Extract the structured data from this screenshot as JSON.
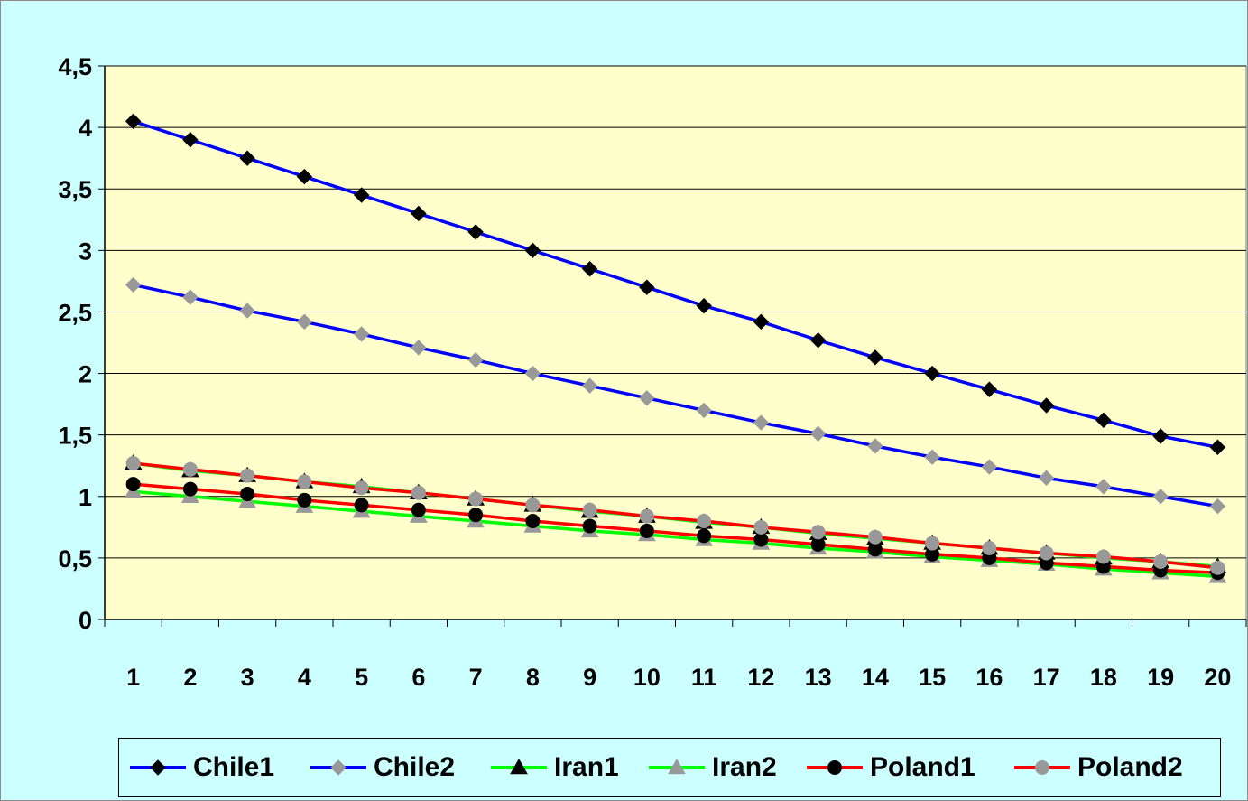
{
  "chart_data": {
    "type": "line",
    "x": [
      1,
      2,
      3,
      4,
      5,
      6,
      7,
      8,
      9,
      10,
      11,
      12,
      13,
      14,
      15,
      16,
      17,
      18,
      19,
      20
    ],
    "x_tick_labels": [
      "1",
      "2",
      "3",
      "4",
      "5",
      "6",
      "7",
      "8",
      "9",
      "10",
      "11",
      "12",
      "13",
      "14",
      "15",
      "16",
      "17",
      "18",
      "19",
      "20"
    ],
    "ylim": [
      0,
      4.5
    ],
    "y_ticks": [
      0,
      0.5,
      1,
      1.5,
      2,
      2.5,
      3,
      3.5,
      4,
      4.5
    ],
    "y_tick_labels": [
      "0",
      "0,5",
      "1",
      "1,5",
      "2",
      "2,5",
      "3",
      "3,5",
      "4",
      "4,5"
    ],
    "grid": "horizontal",
    "legend_position": "bottom",
    "plot_background": "#ffffcc",
    "chart_background": "#ccffff",
    "series": [
      {
        "name": "Chile1",
        "line_color": "#0000ff",
        "marker": "diamond",
        "marker_color": "#000000",
        "values": [
          4.05,
          3.9,
          3.75,
          3.6,
          3.45,
          3.3,
          3.15,
          3.0,
          2.85,
          2.7,
          2.55,
          2.42,
          2.27,
          2.13,
          2.0,
          1.87,
          1.74,
          1.62,
          1.49,
          1.4
        ]
      },
      {
        "name": "Chile2",
        "line_color": "#0000ff",
        "marker": "diamond",
        "marker_color": "#999999",
        "values": [
          2.72,
          2.62,
          2.51,
          2.42,
          2.32,
          2.21,
          2.11,
          2.0,
          1.9,
          1.8,
          1.7,
          1.6,
          1.51,
          1.41,
          1.32,
          1.24,
          1.15,
          1.08,
          1.0,
          0.92
        ]
      },
      {
        "name": "Iran1",
        "line_color": "#00ff00",
        "marker": "triangle",
        "marker_color": "#000000",
        "values": [
          1.27,
          1.21,
          1.17,
          1.12,
          1.08,
          1.03,
          0.98,
          0.93,
          0.88,
          0.84,
          0.79,
          0.75,
          0.7,
          0.66,
          0.62,
          0.58,
          0.54,
          0.5,
          0.47,
          0.43
        ]
      },
      {
        "name": "Iran2",
        "line_color": "#00ff00",
        "marker": "triangle",
        "marker_color": "#999999",
        "values": [
          1.04,
          1.0,
          0.96,
          0.92,
          0.88,
          0.84,
          0.8,
          0.76,
          0.72,
          0.69,
          0.65,
          0.62,
          0.58,
          0.55,
          0.51,
          0.48,
          0.45,
          0.41,
          0.38,
          0.35
        ]
      },
      {
        "name": "Poland1",
        "line_color": "#ff0000",
        "marker": "circle",
        "marker_color": "#000000",
        "values": [
          1.1,
          1.06,
          1.02,
          0.97,
          0.93,
          0.89,
          0.85,
          0.8,
          0.76,
          0.72,
          0.68,
          0.65,
          0.61,
          0.57,
          0.53,
          0.5,
          0.46,
          0.43,
          0.4,
          0.38
        ]
      },
      {
        "name": "Poland2",
        "line_color": "#ff0000",
        "marker": "circle",
        "marker_color": "#999999",
        "values": [
          1.27,
          1.22,
          1.17,
          1.12,
          1.07,
          1.03,
          0.98,
          0.93,
          0.89,
          0.84,
          0.8,
          0.75,
          0.71,
          0.67,
          0.62,
          0.58,
          0.54,
          0.51,
          0.47,
          0.42
        ]
      }
    ]
  }
}
